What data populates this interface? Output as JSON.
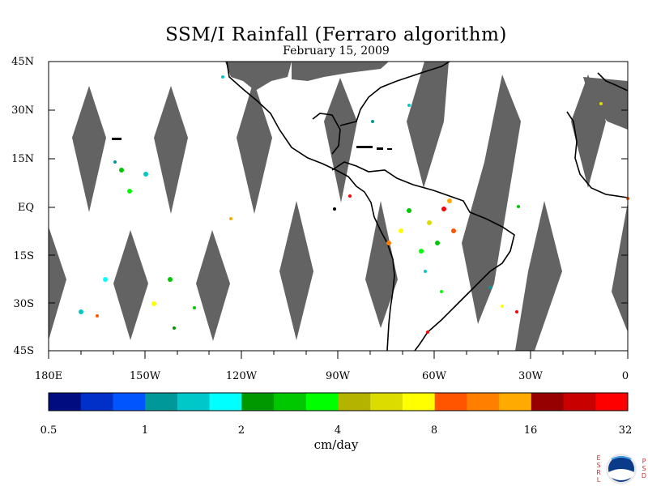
{
  "header": {
    "title": "SSM/I Rainfall (Ferraro algorithm)",
    "date": "February 15, 2009"
  },
  "map": {
    "lat_labels": [
      "45N",
      "30N",
      "15N",
      "EQ",
      "15S",
      "30S",
      "45S"
    ],
    "lon_labels": [
      "180E",
      "150W",
      "120W",
      "90W",
      "60W",
      "30W",
      "0"
    ],
    "land_color": "#636363",
    "ocean_color": "#ffffff"
  },
  "colorbar": {
    "colors": [
      "#000c80",
      "#0030c8",
      "#0055ff",
      "#009898",
      "#00c8c8",
      "#00ffff",
      "#009800",
      "#00c800",
      "#00ff00",
      "#b4b400",
      "#dcdc00",
      "#ffff00",
      "#ff5500",
      "#ff8000",
      "#ffaa00",
      "#960000",
      "#c80000",
      "#ff0000"
    ],
    "tick_labels": [
      "0.5",
      "1",
      "2",
      "4",
      "8",
      "16",
      "32"
    ],
    "unit": "cm/day"
  },
  "logo": {
    "left_letters": [
      "E",
      "S",
      "R",
      "L"
    ],
    "right_letters": [
      "P",
      "S",
      "D"
    ],
    "name": "noaa-logo"
  }
}
